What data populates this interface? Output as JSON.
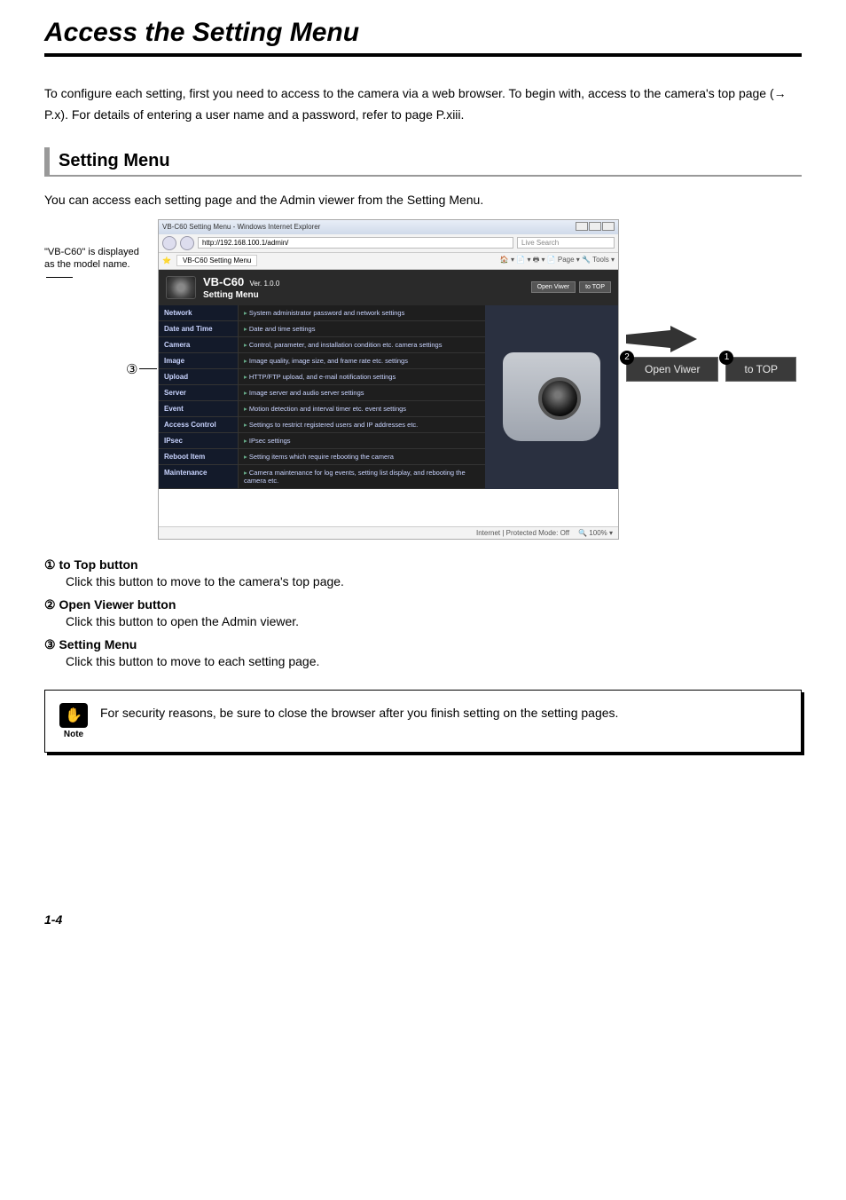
{
  "page": {
    "title": "Access the Setting Menu",
    "intro": "To configure each setting, first you need to access to the camera via a web browser.\nTo begin with, access to the camera's top page (→ P.x). For details of entering a user name and a password, refer to page P.xiii.",
    "section_heading": "Setting Menu",
    "sub_intro": "You can access each setting page and the Admin viewer from the Setting Menu.",
    "page_number": "1-4"
  },
  "annotations": {
    "left_note": "\"VB-C60\" is displayed as the model name.",
    "circled_3": "③"
  },
  "browser": {
    "window_title": "VB-C60 Setting Menu - Windows Internet Explorer",
    "url": "http://192.168.100.1/admin/",
    "search_placeholder": "Live Search",
    "tab_label": "VB-C60 Setting Menu",
    "toolbar_right": "🏠 ▾  📄 ▾  🖶 ▾  📄 Page ▾  🔧 Tools ▾",
    "status_left": "Internet | Protected Mode: Off",
    "status_right": "🔍 100%  ▾"
  },
  "camera_page": {
    "model": "VB-C60",
    "version": "Ver. 1.0.0",
    "subtitle": "Setting Menu",
    "open_viewer_btn": "Open Viwer",
    "to_top_btn": "to TOP"
  },
  "menu_items": [
    {
      "label": "Network",
      "desc": "System administrator password and network settings"
    },
    {
      "label": "Date and Time",
      "desc": "Date and time settings"
    },
    {
      "label": "Camera",
      "desc": "Control, parameter, and installation condition etc. camera settings"
    },
    {
      "label": "Image",
      "desc": "Image quality, image size, and frame rate etc. settings"
    },
    {
      "label": "Upload",
      "desc": "HTTP/FTP upload, and e-mail notification settings"
    },
    {
      "label": "Server",
      "desc": "Image server and audio server settings"
    },
    {
      "label": "Event",
      "desc": "Motion detection and interval timer etc. event settings"
    },
    {
      "label": "Access Control",
      "desc": "Settings to restrict registered users and IP addresses etc."
    },
    {
      "label": "IPsec",
      "desc": "IPsec settings"
    },
    {
      "label": "Reboot Item",
      "desc": "Setting items which require rebooting the camera"
    },
    {
      "label": "Maintenance",
      "desc": "Camera maintenance for log events, setting list display, and rebooting the camera etc."
    }
  ],
  "callouts": {
    "btn2": "Open Viwer",
    "btn1": "to TOP",
    "badge2": "2",
    "badge1": "1"
  },
  "legend": [
    {
      "num": "①",
      "title": "to Top button",
      "body": "Click this button to move to the camera's top page."
    },
    {
      "num": "②",
      "title": "Open Viewer button",
      "body": "Click this button to open the Admin viewer."
    },
    {
      "num": "③",
      "title": "Setting Menu",
      "body": "Click this button to move to each setting page."
    }
  ],
  "note": {
    "label": "Note",
    "icon_glyph": "✋",
    "text": "For security reasons, be sure to close the browser after you finish setting on the setting pages."
  },
  "colors": {
    "dark_bg": "#1e1e1e",
    "menu_label_bg": "#131a2a",
    "link_color": "#c9d4ff"
  }
}
